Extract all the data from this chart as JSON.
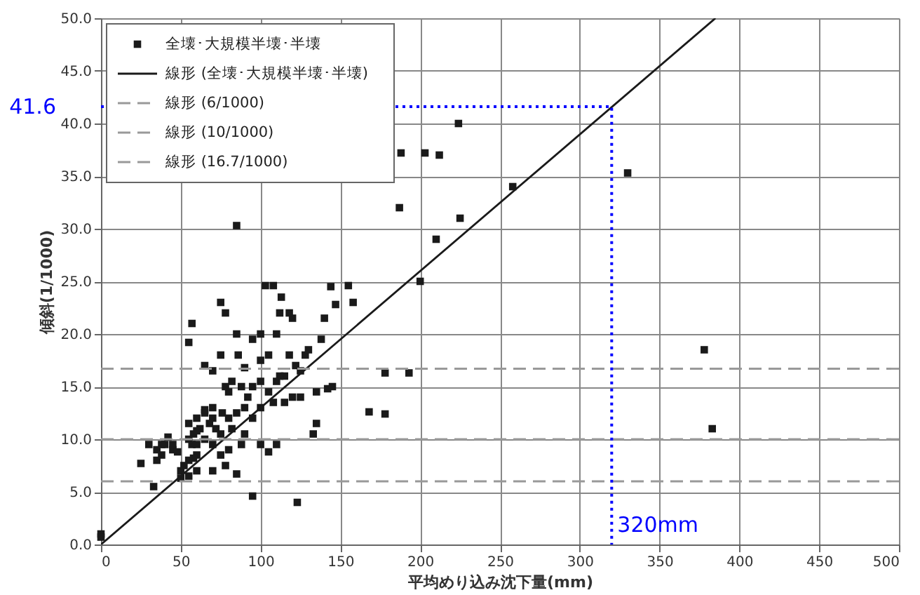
{
  "chart_data": {
    "type": "scatter",
    "xlabel": "平均めり込み沈下量(mm)",
    "ylabel": "傾斜(1/1000)",
    "xlim": [
      0,
      500
    ],
    "xticks": [
      0,
      50,
      100,
      150,
      200,
      250,
      300,
      350,
      400,
      450,
      500
    ],
    "ylim": [
      0,
      50
    ],
    "yticks": [
      {
        "value": 0,
        "label": "0.0"
      },
      {
        "value": 5,
        "label": "5.0"
      },
      {
        "value": 10,
        "label": "10.0"
      },
      {
        "value": 15,
        "label": "15.0"
      },
      {
        "value": 20,
        "label": "20.0"
      },
      {
        "value": 25,
        "label": "25.0"
      },
      {
        "value": 30,
        "label": "30.0"
      },
      {
        "value": 35,
        "label": "35.0"
      },
      {
        "value": 40,
        "label": "40.0"
      },
      {
        "value": 45,
        "label": "45.0"
      },
      {
        "value": 50,
        "label": "50.0"
      }
    ],
    "grid": true,
    "legend": "top left",
    "series": [
      {
        "name": "全壊･大規模半壊･半壊",
        "marker": "square",
        "color": "#1a1a1a",
        "x": [
          0,
          0,
          85,
          330,
          378,
          383,
          258,
          224,
          212,
          203,
          188,
          187,
          225,
          210,
          200,
          193,
          178,
          178,
          168,
          155,
          158,
          144,
          147,
          140,
          138,
          135,
          133,
          123,
          95,
          125,
          142,
          128,
          120,
          118,
          112,
          108,
          110,
          113,
          103,
          75,
          78,
          57,
          55,
          85,
          100,
          95,
          86,
          75,
          65,
          70,
          90,
          100,
          105,
          118,
          130,
          122,
          115,
          110,
          100,
          95,
          88,
          80,
          78,
          82,
          92,
          100,
          108,
          115,
          120,
          105,
          112,
          76,
          70,
          65,
          60,
          62,
          58,
          55,
          60,
          65,
          68,
          72,
          75,
          80,
          85,
          90,
          95,
          70,
          75,
          80,
          78,
          85,
          70,
          60,
          55,
          50,
          52,
          45,
          42,
          40,
          38,
          35,
          30,
          25,
          33,
          50,
          55,
          58,
          90,
          100,
          105,
          110,
          45,
          35,
          38,
          48,
          55,
          60,
          65,
          70,
          57,
          60,
          88,
          82,
          125,
          135,
          145
        ],
        "values": [
          1.0,
          0.7,
          30.3,
          35.3,
          18.5,
          11.0,
          34.0,
          40.0,
          37.0,
          37.2,
          37.2,
          32.0,
          31.0,
          29.0,
          25.0,
          16.3,
          16.3,
          12.4,
          12.6,
          24.6,
          23.0,
          24.5,
          22.8,
          21.5,
          19.5,
          11.5,
          10.5,
          4.0,
          4.6,
          14.0,
          14.8,
          18.0,
          21.5,
          22.0,
          22.0,
          24.6,
          20.0,
          23.5,
          24.6,
          23.0,
          22.0,
          21.0,
          19.2,
          20.0,
          20.0,
          19.5,
          18.0,
          18.0,
          17.0,
          16.5,
          16.8,
          17.5,
          18.0,
          18.0,
          18.5,
          17.0,
          16.0,
          15.5,
          15.5,
          15.0,
          15.0,
          14.5,
          15.0,
          15.5,
          14.0,
          13.0,
          13.5,
          13.5,
          14.0,
          14.5,
          16.0,
          12.5,
          12.0,
          12.5,
          12.0,
          11.0,
          10.5,
          10.0,
          9.5,
          10.0,
          11.5,
          11.0,
          10.5,
          12.0,
          12.5,
          13.0,
          12.0,
          9.5,
          8.5,
          9.0,
          7.5,
          6.7,
          7.0,
          8.5,
          8.0,
          7.0,
          7.5,
          9.0,
          10.2,
          9.5,
          8.5,
          8.0,
          9.5,
          7.7,
          5.5,
          6.3,
          6.5,
          8.2,
          10.5,
          9.5,
          8.8,
          9.5,
          9.5,
          9.0,
          9.5,
          8.8,
          11.5,
          10.8,
          12.8,
          13.0,
          9.5,
          7.0,
          9.5,
          11.0,
          16.5,
          14.5,
          15.0
        ]
      },
      {
        "name": "線形 (全壊･大規模半壊･半壊)",
        "type": "line",
        "color": "#1a1a1a",
        "line_style": "solid",
        "x": [
          0,
          385
        ],
        "values": [
          0,
          50
        ]
      },
      {
        "name": "線形 (6/1000)",
        "type": "line",
        "color": "#999999",
        "line_style": "dashed",
        "x": [
          0,
          500
        ],
        "values": [
          6,
          6
        ]
      },
      {
        "name": "線形 (10/1000)",
        "type": "line",
        "color": "#999999",
        "line_style": "dashed",
        "x": [
          0,
          500
        ],
        "values": [
          10,
          10
        ]
      },
      {
        "name": "線形 (16.7/1000)",
        "type": "line",
        "color": "#999999",
        "line_style": "dashed",
        "x": [
          0,
          500
        ],
        "values": [
          16.7,
          16.7
        ]
      },
      {
        "type": "line",
        "color": "#0000ff",
        "line_style": "dotted",
        "x": [
          0,
          320,
          320
        ],
        "values": [
          41.6,
          41.6,
          0
        ]
      }
    ],
    "annotations": [
      {
        "text": "41.6",
        "x": 0,
        "y": 41.6
      },
      {
        "text": "320mm",
        "x": 320,
        "y": 0
      }
    ]
  }
}
